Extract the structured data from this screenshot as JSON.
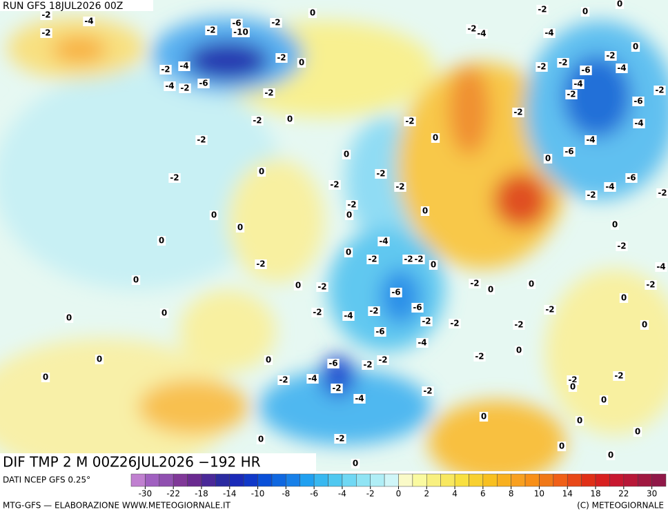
{
  "header": {
    "run": "RUN GFS 18JUL2026 00Z"
  },
  "map": {
    "contour_labels": [
      -2,
      -4,
      -2,
      0,
      -2,
      -6,
      -2,
      -10,
      -2,
      -4,
      -6,
      -4,
      -2,
      -2,
      0,
      -2,
      -2,
      0,
      -2,
      -2,
      0,
      0,
      0,
      0,
      0,
      0,
      0,
      0,
      0,
      -2,
      0,
      -2,
      -2,
      -4,
      0,
      -2,
      -2,
      0,
      -2,
      -2,
      -4,
      0,
      -2,
      -2,
      -2,
      0,
      0,
      -2,
      0,
      -6,
      -6,
      -2,
      -6,
      -2,
      -4,
      -2,
      -2,
      0,
      0,
      -2,
      -2,
      -2,
      0,
      -2,
      0,
      -6,
      -2,
      -2,
      0,
      -2,
      -4,
      -2,
      -4,
      -2,
      0,
      0,
      -2,
      -4,
      -2,
      0,
      0,
      -4,
      0,
      -2,
      -2,
      -6,
      -2,
      -4,
      -4,
      -2,
      -6,
      -4,
      -2,
      -2,
      -4,
      -6,
      0,
      -4,
      -6,
      -2,
      -2,
      0,
      -2,
      -4,
      -2,
      0,
      0,
      -2,
      0,
      -2,
      0,
      0,
      0,
      0,
      0
    ]
  },
  "footer": {
    "field": "DIF TMP 2 M 00Z26JUL2026 −192 HR",
    "source": "DATI NCEP GFS 0.25°",
    "credit": "MTG-GFS — ELABORAZIONE WWW.METEOGIORNALE.IT",
    "copyright": "(C) METEOGIORNALE"
  },
  "legend": {
    "ticks": [
      -30,
      -22,
      -18,
      -14,
      -10,
      -8,
      -6,
      -4,
      -2,
      0,
      2,
      4,
      6,
      8,
      10,
      14,
      18,
      22,
      30
    ],
    "colors": [
      "#c080d0",
      "#a060c0",
      "#9050b0",
      "#803898",
      "#6a2a90",
      "#4a2898",
      "#2a2aa0",
      "#1a2ab8",
      "#1038c8",
      "#0a50d8",
      "#1068e0",
      "#1880e8",
      "#20a0f0",
      "#38b8f0",
      "#50c8f0",
      "#70d8f4",
      "#90e4f4",
      "#b0eef6",
      "#d0f6f8",
      "#fafac8",
      "#fafaa0",
      "#f8f080",
      "#f8e860",
      "#f8e040",
      "#f8d030",
      "#f8c020",
      "#f8b020",
      "#f8a020",
      "#f89018",
      "#f07818",
      "#f06018",
      "#e84818",
      "#e03018",
      "#d82020",
      "#c81830",
      "#b81838",
      "#a01840",
      "#901848"
    ]
  }
}
